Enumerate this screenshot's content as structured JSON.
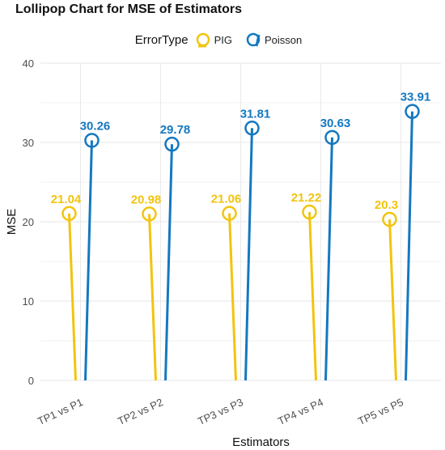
{
  "chart_data": {
    "type": "lollipop",
    "title": "Lollipop Chart for MSE of Estimators",
    "xlabel": "Estimators",
    "ylabel": "MSE",
    "ylim": [
      0,
      40
    ],
    "yticks": [
      0,
      10,
      20,
      30,
      40
    ],
    "grid": true,
    "legend": {
      "title": "ErrorType",
      "position": "top"
    },
    "categories": [
      "TP1 vs P1",
      "TP2 vs P2",
      "TP3 vs P3",
      "TP4 vs P4",
      "TP5 vs P5"
    ],
    "series": [
      {
        "name": "PIG",
        "color": "#f2c40f",
        "values": [
          21.04,
          20.98,
          21.06,
          21.22,
          20.3
        ],
        "labels": [
          "21.04",
          "20.98",
          "21.06",
          "21.22",
          "20.3"
        ]
      },
      {
        "name": "Poisson",
        "color": "#1478c0",
        "values": [
          30.26,
          29.78,
          31.81,
          30.63,
          33.91
        ],
        "labels": [
          "30.26",
          "29.78",
          "31.81",
          "30.63",
          "33.91"
        ]
      }
    ]
  }
}
